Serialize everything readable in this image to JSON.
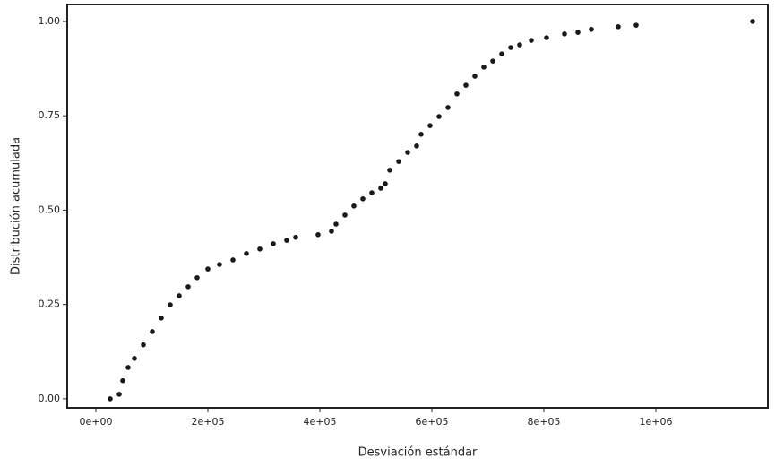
{
  "chart_data": {
    "type": "scatter",
    "x_label": "Desviación estándar",
    "y_label": "Distribución acumulada",
    "color": "#1a1a1a",
    "x": [
      25600,
      41600,
      48000,
      57600,
      68800,
      84800,
      100800,
      116800,
      132800,
      148800,
      164800,
      180800,
      200000,
      220800,
      244800,
      268800,
      292800,
      316800,
      340800,
      356800,
      396800,
      420800,
      428800,
      444800,
      460800,
      476800,
      492800,
      508800,
      516800,
      524800,
      540800,
      556800,
      572800,
      580800,
      596800,
      612800,
      628800,
      644800,
      660800,
      676800,
      692800,
      708800,
      724800,
      740800,
      756800,
      777600,
      804800,
      836800,
      860800,
      884800,
      932800,
      964800,
      1172800
    ],
    "values": [
      0,
      0.012,
      0.048,
      0.083,
      0.107,
      0.143,
      0.178,
      0.214,
      0.249,
      0.273,
      0.297,
      0.321,
      0.344,
      0.356,
      0.368,
      0.385,
      0.397,
      0.411,
      0.42,
      0.428,
      0.435,
      0.444,
      0.463,
      0.487,
      0.511,
      0.53,
      0.546,
      0.558,
      0.57,
      0.606,
      0.629,
      0.653,
      0.67,
      0.701,
      0.724,
      0.748,
      0.772,
      0.808,
      0.831,
      0.855,
      0.879,
      0.895,
      0.914,
      0.931,
      0.938,
      0.95,
      0.957,
      0.967,
      0.971,
      0.979,
      0.986,
      0.99,
      1.0
    ],
    "xlim": [
      -51200,
      1200000
    ],
    "ylim": [
      -0.024,
      1.045
    ],
    "xticks": [
      {
        "value": 0,
        "label": "0e+00"
      },
      {
        "value": 200000,
        "label": "2e+05"
      },
      {
        "value": 400000,
        "label": "4e+05"
      },
      {
        "value": 600000,
        "label": "6e+05"
      },
      {
        "value": 800000,
        "label": "8e+05"
      },
      {
        "value": 1000000,
        "label": "1e+06"
      }
    ],
    "yticks": [
      {
        "value": 0,
        "label": "0.00"
      },
      {
        "value": 0.25,
        "label": "0.25"
      },
      {
        "value": 0.5,
        "label": "0.50"
      },
      {
        "value": 0.75,
        "label": "0.75"
      },
      {
        "value": 1,
        "label": "1.00"
      }
    ]
  }
}
